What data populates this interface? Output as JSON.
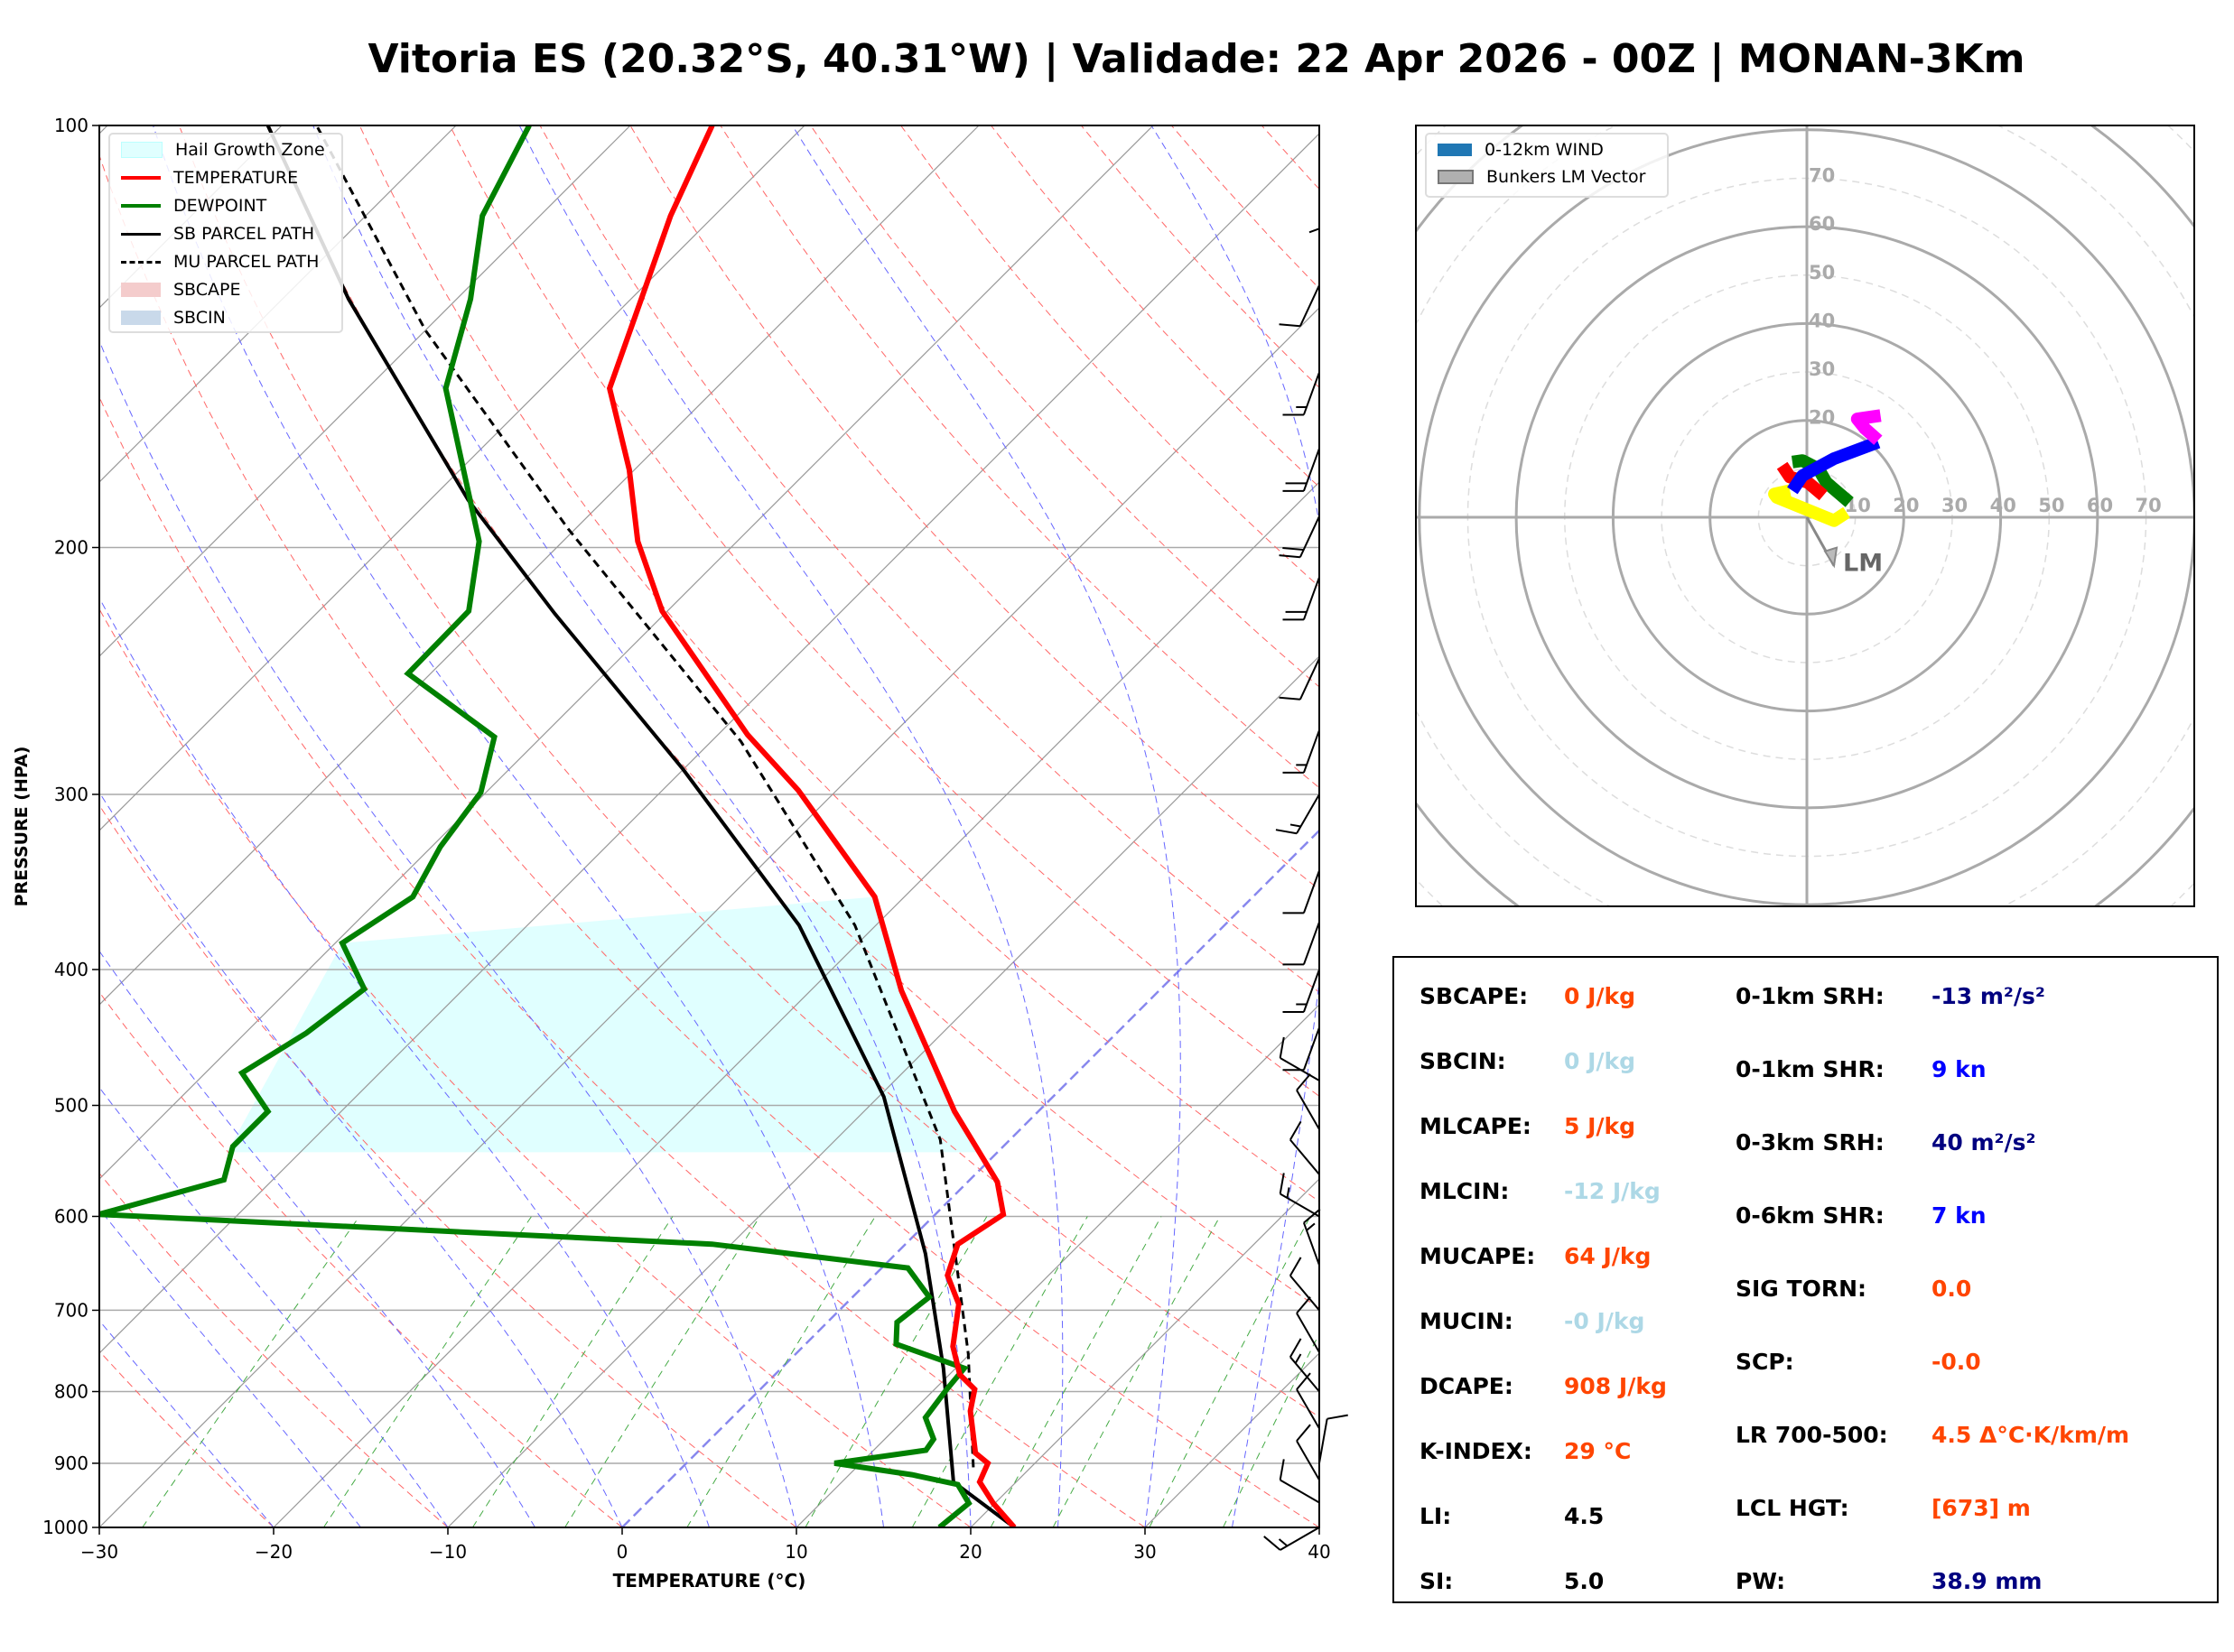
{
  "title": "Vitoria ES (20.32°S, 40.31°W) | Validade: 22 Apr 2026 - 00Z | MONAN-3Km",
  "chart_data": [
    {
      "type": "line",
      "name": "skew-t",
      "xlabel": "TEMPERATURE (°C)",
      "ylabel": "PRESSURE (HPA)",
      "xlim": [
        -30,
        40
      ],
      "ylim": [
        1000,
        100
      ],
      "xticks": [
        "−30",
        "−20",
        "−10",
        "0",
        "10",
        "20",
        "30",
        "40"
      ],
      "xtick_values": [
        -30,
        -20,
        -10,
        0,
        10,
        20,
        30,
        40
      ],
      "yticks": [
        "100",
        "200",
        "300",
        "400",
        "500",
        "600",
        "700",
        "800",
        "900",
        "1000"
      ],
      "ytick_values": [
        100,
        200,
        300,
        400,
        500,
        600,
        700,
        800,
        900,
        1000
      ],
      "legend": {
        "position": "top-left",
        "items": [
          "Hail Growth Zone",
          "TEMPERATURE",
          "DEWPOINT",
          "SB PARCEL PATH",
          "MU PARCEL PATH",
          "SBCAPE",
          "SBCIN"
        ]
      },
      "colors": {
        "temperature": "#ff0000",
        "dewpoint": "#008000",
        "sb_parcel": "#000000",
        "mu_parcel": "#000000",
        "hail": "#e0ffff",
        "sbcape": "#f4cccc",
        "sbcin": "#c9d9ea"
      },
      "temperature": [
        [
          1000,
          22.5
        ],
        [
          961,
          19.9
        ],
        [
          928,
          17.9
        ],
        [
          900,
          17.3
        ],
        [
          885,
          16.0
        ],
        [
          826,
          13.3
        ],
        [
          797,
          12.3
        ],
        [
          778,
          10.6
        ],
        [
          743,
          8.6
        ],
        [
          693,
          6.5
        ],
        [
          661,
          4.2
        ],
        [
          628,
          3.0
        ],
        [
          598,
          3.9
        ],
        [
          567,
          1.7
        ],
        [
          505,
          -4.8
        ],
        [
          414,
          -14.8
        ],
        [
          355,
          -21.7
        ],
        [
          298,
          -32.2
        ],
        [
          272,
          -38.3
        ],
        [
          222,
          -50.3
        ],
        [
          198,
          -55.7
        ],
        [
          176,
          -60.3
        ],
        [
          154,
          -66.1
        ],
        [
          133,
          -69.4
        ],
        [
          116,
          -72.5
        ],
        [
          100,
          -75.3
        ]
      ],
      "dewpoint": [
        [
          1000,
          18.2
        ],
        [
          961,
          18.5
        ],
        [
          932,
          16.8
        ],
        [
          917,
          13.6
        ],
        [
          900,
          8.5
        ],
        [
          881,
          13.0
        ],
        [
          865,
          12.8
        ],
        [
          835,
          11.1
        ],
        [
          797,
          10.7
        ],
        [
          770,
          10.5
        ],
        [
          740,
          5.2
        ],
        [
          714,
          4.0
        ],
        [
          685,
          4.4
        ],
        [
          653,
          1.5
        ],
        [
          628,
          -11.1
        ],
        [
          598,
          -48
        ],
        [
          565,
          -42.8
        ],
        [
          535,
          -44.2
        ],
        [
          505,
          -44.2
        ],
        [
          474,
          -47.9
        ],
        [
          444,
          -46.5
        ],
        [
          413,
          -45.7
        ],
        [
          383,
          -49.6
        ],
        [
          355,
          -48.2
        ],
        [
          327,
          -49.5
        ],
        [
          299,
          -50.3
        ],
        [
          273,
          -52.7
        ],
        [
          246,
          -61.3
        ],
        [
          222,
          -61.4
        ],
        [
          198,
          -64.8
        ],
        [
          154,
          -75.5
        ],
        [
          133,
          -79.2
        ],
        [
          116,
          -83.3
        ],
        [
          100,
          -85.8
        ]
      ],
      "sb_parcel": [
        [
          1000,
          22.5
        ],
        [
          928,
          16.4
        ],
        [
          770,
          9.3
        ],
        [
          638,
          1.7
        ],
        [
          493,
          -9.7
        ],
        [
          372,
          -24.4
        ],
        [
          288,
          -40
        ],
        [
          223,
          -56.3
        ],
        [
          185,
          -67.8
        ],
        [
          133,
          -86.2
        ],
        [
          100,
          -100.8
        ]
      ],
      "mu_parcel": [
        [
          906,
          16.7
        ],
        [
          752,
          9.9
        ],
        [
          529,
          -4
        ],
        [
          372,
          -21.2
        ],
        [
          275,
          -38.3
        ],
        [
          194,
          -60.4
        ],
        [
          140,
          -80
        ],
        [
          100,
          -98
        ]
      ],
      "hail_zone": [
        [
          383,
          -49.6
        ],
        [
          355,
          -21.7
        ],
        [
          414,
          -14.8
        ],
        [
          505,
          -4.8
        ],
        [
          540,
          -0.9
        ],
        [
          540,
          -44.2
        ]
      ],
      "wind_barbs": [
        [
          1000,
          15,
          240
        ],
        [
          960,
          10,
          300
        ],
        [
          925,
          8,
          330
        ],
        [
          900,
          10,
          10
        ],
        [
          850,
          12,
          330
        ],
        [
          800,
          14,
          320
        ],
        [
          750,
          10,
          330
        ],
        [
          700,
          12,
          320
        ],
        [
          650,
          15,
          340
        ],
        [
          600,
          14,
          300
        ],
        [
          560,
          12,
          320
        ],
        [
          520,
          10,
          330
        ],
        [
          480,
          8,
          300
        ],
        [
          440,
          10,
          200
        ],
        [
          400,
          15,
          200
        ],
        [
          370,
          12,
          200
        ],
        [
          340,
          12,
          200
        ],
        [
          300,
          14,
          210
        ],
        [
          270,
          14,
          200
        ],
        [
          240,
          12,
          205
        ],
        [
          210,
          18,
          200
        ],
        [
          190,
          20,
          205
        ],
        [
          170,
          20,
          200
        ],
        [
          150,
          15,
          200
        ],
        [
          130,
          10,
          205
        ],
        [
          110,
          5,
          180
        ]
      ]
    },
    {
      "type": "line",
      "name": "hodograph",
      "units": "kn",
      "rings_solid": [
        20,
        40,
        60,
        80
      ],
      "rings_dashed": [
        10,
        30,
        50,
        70
      ],
      "ring_labels": [
        "10",
        "20",
        "30",
        "40",
        "50",
        "60",
        "70"
      ],
      "legend": {
        "position": "top-left",
        "items": [
          "0-12km WIND",
          "Bunkers LM Vector"
        ]
      },
      "segments": [
        {
          "color": "#ffff00",
          "points": [
            [
              8.2,
              1.0
            ],
            [
              5.6,
              -0.7
            ],
            [
              -6.2,
              4.1
            ],
            [
              -6.7,
              4.8
            ],
            [
              -3.5,
              5.5
            ]
          ]
        },
        {
          "color": "#008000",
          "points": [
            [
              8.8,
              3.1
            ],
            [
              4.0,
              7.2
            ],
            [
              2.4,
              10
            ],
            [
              -0.9,
              11.7
            ],
            [
              -3,
              11.4
            ]
          ]
        },
        {
          "color": "#ff0000",
          "points": [
            [
              -5.1,
              10.7
            ],
            [
              -3.5,
              8.3
            ],
            [
              0.2,
              7.2
            ],
            [
              3.4,
              4.5
            ]
          ]
        },
        {
          "color": "#0000ff",
          "points": [
            [
              -3,
              5.5
            ],
            [
              -0.9,
              8.6
            ],
            [
              5.6,
              12.1
            ],
            [
              14.7,
              15.5
            ]
          ]
        },
        {
          "color": "#ff00ff",
          "points": [
            [
              14.7,
              15.9
            ],
            [
              12,
              18.3
            ],
            [
              10.4,
              20.3
            ],
            [
              15.2,
              21
            ]
          ]
        }
      ],
      "lm_vector": [
        5.6,
        -10
      ],
      "lm_label": "LM"
    }
  ],
  "stats": {
    "left": [
      {
        "label": "SBCAPE:",
        "value": "0 J/kg",
        "color": "#ff4500"
      },
      {
        "label": "SBCIN:",
        "value": "0 J/kg",
        "color": "#add8e6"
      },
      {
        "label": "MLCAPE:",
        "value": "5 J/kg",
        "color": "#ff4500"
      },
      {
        "label": "MLCIN:",
        "value": "-12 J/kg",
        "color": "#add8e6"
      },
      {
        "label": "MUCAPE:",
        "value": "64 J/kg",
        "color": "#ff4500"
      },
      {
        "label": "MUCIN:",
        "value": "-0 J/kg",
        "color": "#add8e6"
      },
      {
        "label": "DCAPE:",
        "value": "908 J/kg",
        "color": "#ff4500"
      },
      {
        "label": "K-INDEX:",
        "value": "29 °C",
        "color": "#ff4500"
      },
      {
        "label": "LI:",
        "value": "4.5",
        "color": "#000000"
      },
      {
        "label": "SI:",
        "value": "5.0",
        "color": "#000000"
      }
    ],
    "right": [
      {
        "label": "0-1km SRH:",
        "value": "-13 m²/s²",
        "color": "#000080"
      },
      {
        "label": "0-1km SHR:",
        "value": "9 kn",
        "color": "#0000ff"
      },
      {
        "label": "0-3km SRH:",
        "value": "40 m²/s²",
        "color": "#000080"
      },
      {
        "label": "0-6km SHR:",
        "value": "7 kn",
        "color": "#0000ff"
      },
      {
        "label": "SIG TORN:",
        "value": "0.0",
        "color": "#ff4500"
      },
      {
        "label": "SCP:",
        "value": "-0.0",
        "color": "#ff4500"
      },
      {
        "label": "LR 700-500:",
        "value": "4.5 Δ°C·K/km/m",
        "color": "#ff4500"
      },
      {
        "label": "LCL HGT:",
        "value": "[673] m",
        "color": "#ff4500"
      },
      {
        "label": "PW:",
        "value": "38.9 mm",
        "color": "#000080"
      }
    ]
  }
}
